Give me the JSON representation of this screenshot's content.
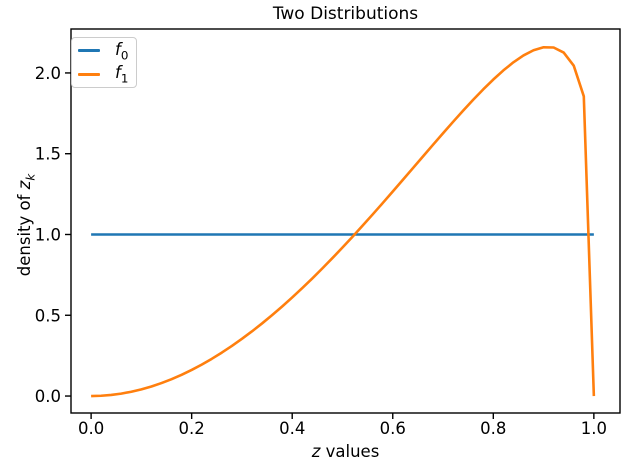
{
  "title": "Two Distributions",
  "axes": {
    "xlabel": {
      "var": "z",
      "rest": " values"
    },
    "ylabel": {
      "prefix": "density of ",
      "var": "z",
      "sub": "k"
    },
    "xtick_labels": [
      "0.0",
      "0.2",
      "0.4",
      "0.6",
      "0.8",
      "1.0"
    ],
    "ytick_labels": [
      "0.0",
      "0.5",
      "1.0",
      "1.5",
      "2.0"
    ]
  },
  "legend": {
    "entries": [
      {
        "var": "f",
        "sub": "0",
        "color": "#1f77b4"
      },
      {
        "var": "f",
        "sub": "1",
        "color": "#ff7f0e"
      }
    ]
  },
  "chart_data": {
    "type": "line",
    "title": "Two Distributions",
    "xlabel": "z values",
    "ylabel": "density of z_k",
    "xlim": [
      -0.04,
      1.052
    ],
    "ylim": [
      -0.105,
      2.272
    ],
    "xticks": [
      0.0,
      0.2,
      0.4,
      0.6,
      0.8,
      1.0
    ],
    "yticks": [
      0.0,
      0.5,
      1.0,
      1.5,
      2.0
    ],
    "grid": false,
    "legend_position": "upper left",
    "series": [
      {
        "name": "f0",
        "label": "f_0",
        "color": "#1f77b4",
        "linewidth": 2.6,
        "x": [
          0.0,
          1.0
        ],
        "y": [
          1.0,
          1.0
        ]
      },
      {
        "name": "f1",
        "label": "f_1",
        "color": "#ff7f0e",
        "linewidth": 2.6,
        "x": [
          0.0,
          0.02,
          0.04,
          0.06,
          0.08,
          0.1,
          0.12,
          0.14,
          0.16,
          0.18,
          0.2,
          0.22,
          0.24,
          0.26,
          0.28,
          0.3,
          0.32,
          0.34,
          0.36,
          0.38,
          0.4,
          0.42,
          0.44,
          0.46,
          0.48,
          0.5,
          0.52,
          0.54,
          0.56,
          0.58,
          0.6,
          0.62,
          0.64,
          0.66,
          0.68,
          0.7,
          0.72,
          0.74,
          0.76,
          0.78,
          0.8,
          0.82,
          0.84,
          0.86,
          0.88,
          0.9,
          0.92,
          0.94,
          0.96,
          0.98,
          1.0
        ],
        "y": [
          0.0,
          0.0017,
          0.0067,
          0.015,
          0.0266,
          0.0414,
          0.0593,
          0.0803,
          0.1044,
          0.1315,
          0.1616,
          0.1945,
          0.2303,
          0.2689,
          0.3101,
          0.354,
          0.4004,
          0.4494,
          0.5007,
          0.5543,
          0.6102,
          0.6682,
          0.7282,
          0.7902,
          0.8539,
          0.9193,
          0.9862,
          1.0545,
          1.1241,
          1.1946,
          1.266,
          1.338,
          1.4104,
          1.4829,
          1.5551,
          1.6268,
          1.6975,
          1.7668,
          1.8342,
          1.8984,
          1.9593,
          2.0156,
          2.0659,
          2.1085,
          2.1406,
          2.1588,
          2.1574,
          2.1262,
          2.0451,
          1.8552,
          0.0
        ]
      }
    ]
  }
}
